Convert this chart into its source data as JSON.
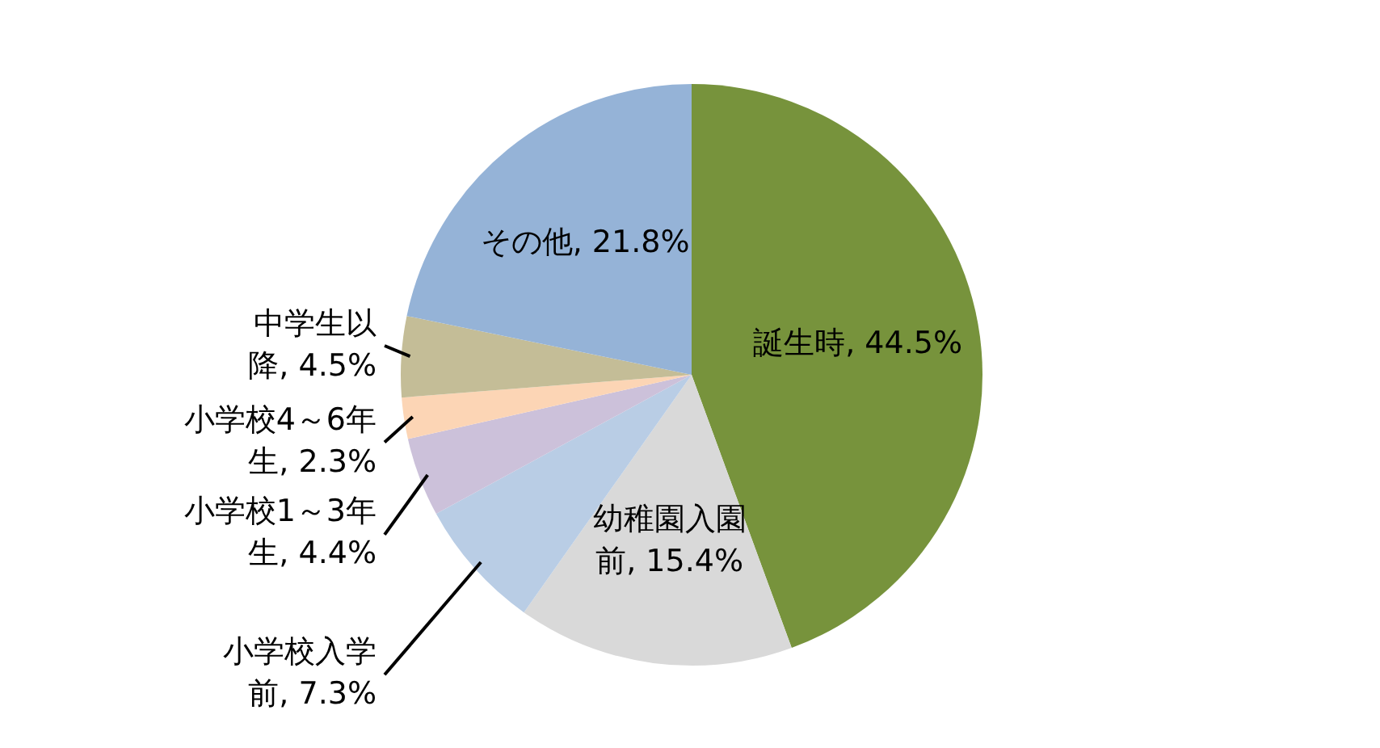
{
  "chart_data": {
    "type": "pie",
    "categories": [
      "誕生時",
      "幼稚園入園前",
      "小学校入学前",
      "小学校1～3年生",
      "小学校4～6年生",
      "中学生以降",
      "その他"
    ],
    "values": [
      44.5,
      15.4,
      7.3,
      4.4,
      2.3,
      4.5,
      21.8
    ],
    "value_labels": [
      ", 44.5%",
      ", 15.4%",
      ", 7.3%",
      ", 4.4%",
      ", 2.3%",
      ", 4.5%",
      ", 21.8%"
    ],
    "colors": [
      "#77933c",
      "#d9d9d9",
      "#b9cde5",
      "#ccc1da",
      "#fcd5b5",
      "#c4bd97",
      "#95b3d7"
    ],
    "legend": false
  }
}
